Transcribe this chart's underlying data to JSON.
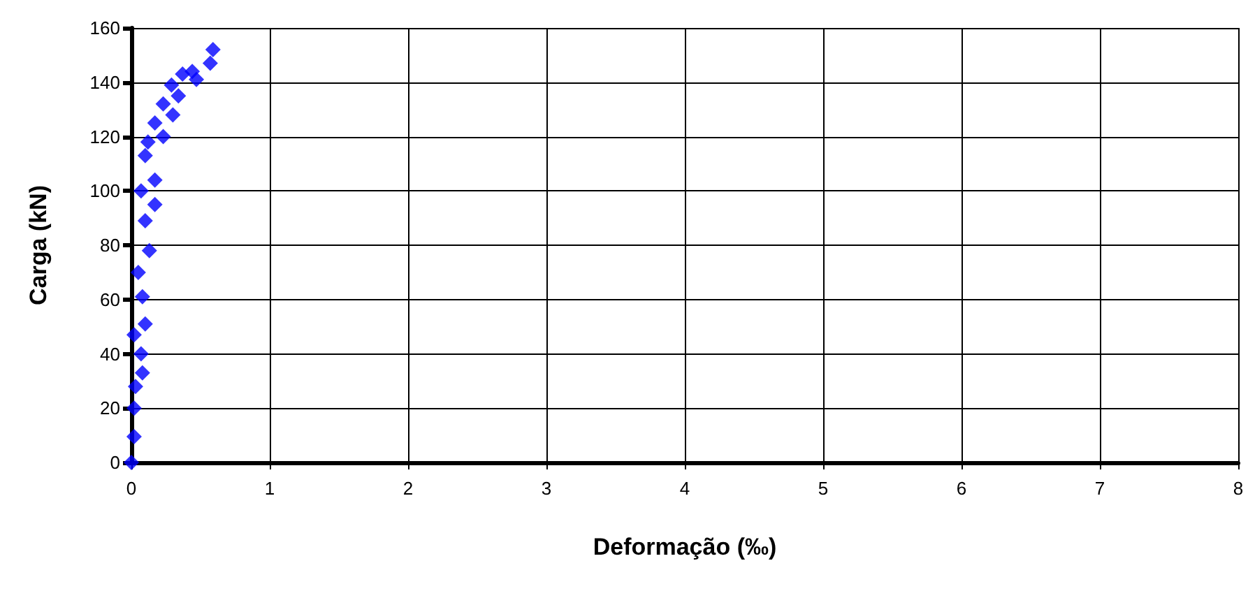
{
  "chart_data": {
    "type": "scatter",
    "xlabel": "Deformação (‰)",
    "ylabel": "Carga (kN)",
    "xlim": [
      0,
      8
    ],
    "xticks": [
      0,
      1,
      2,
      3,
      4,
      5,
      6,
      7,
      8
    ],
    "ylim": [
      0,
      160
    ],
    "yticks": [
      0,
      20,
      40,
      60,
      80,
      100,
      120,
      140,
      160
    ],
    "grid": true,
    "marker": "diamond",
    "series": [
      {
        "color": "#0000ff",
        "x": [
          0,
          0.02,
          0.02,
          0.03,
          0.08,
          0.07,
          0.02,
          0.1,
          0.08,
          0.05,
          0.13,
          0.1,
          0.17,
          0.07,
          0.17,
          0.1,
          0.12,
          0.23,
          0.17,
          0.3,
          0.23,
          0.34,
          0.29,
          0.37,
          0.47,
          0.44,
          0.57,
          0.59
        ],
        "values": [
          0,
          9.5,
          20,
          28,
          33,
          40,
          47,
          51,
          61,
          70,
          78,
          89,
          95,
          100,
          104,
          113,
          118,
          120,
          125,
          128,
          132,
          135,
          139,
          143,
          141,
          144,
          147,
          152
        ]
      }
    ]
  }
}
